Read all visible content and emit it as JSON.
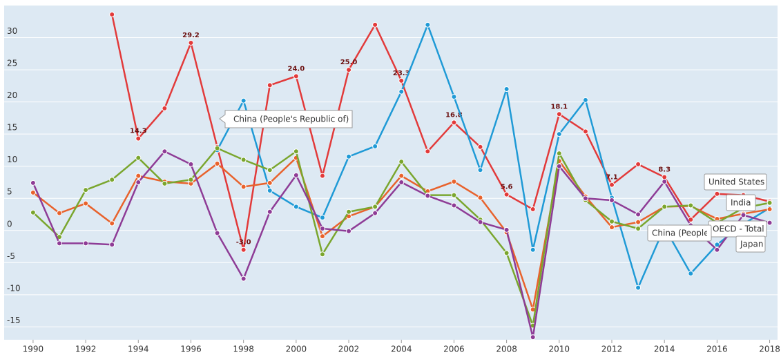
{
  "chart_data": {
    "type": "line",
    "x": [
      1990,
      1991,
      1992,
      1993,
      1994,
      1995,
      1996,
      1997,
      1998,
      1999,
      2000,
      2001,
      2002,
      2003,
      2004,
      2005,
      2006,
      2007,
      2008,
      2009,
      2010,
      2011,
      2012,
      2013,
      2014,
      2015,
      2016,
      2017,
      2018
    ],
    "xlim": [
      1988.9,
      2018.3
    ],
    "xticks": [
      1990,
      1992,
      1994,
      1996,
      1998,
      2000,
      2002,
      2004,
      2006,
      2008,
      2010,
      2012,
      2014,
      2016,
      2018
    ],
    "ylim": [
      -17,
      35
    ],
    "yticks": [
      -15,
      -10,
      -5,
      0,
      5,
      10,
      15,
      20,
      25,
      30
    ],
    "grid": true,
    "series": [
      {
        "name": "India",
        "color": "#e23a3a",
        "values": [
          null,
          null,
          null,
          33.6,
          14.3,
          19.0,
          29.2,
          13.0,
          -3,
          22.6,
          24,
          8.5,
          25,
          32.0,
          23.3,
          12.3,
          16.8,
          13.0,
          5.6,
          3.3,
          18.1,
          15.4,
          7.1,
          10.3,
          8.3,
          1.7,
          5.7,
          5.5,
          4.5
        ],
        "value_labels": [
          null,
          null,
          null,
          null,
          "14.3",
          null,
          "29.2",
          null,
          "-3.0",
          null,
          "24.0",
          null,
          "25.0",
          null,
          "23.3",
          null,
          "16.8",
          null,
          "5.6",
          null,
          "18.1",
          null,
          "7.1",
          null,
          "8.3",
          null,
          null,
          null,
          null
        ]
      },
      {
        "name": "China (People's Republic of)",
        "color": "#1f9ad6",
        "values": [
          null,
          null,
          null,
          null,
          null,
          null,
          null,
          12.5,
          20.2,
          6.2,
          3.7,
          2.0,
          11.5,
          13.1,
          21.6,
          32.0,
          20.8,
          9.4,
          22.0,
          -3.0,
          15.0,
          20.3,
          5.1,
          -8.9,
          0.5,
          -6.7,
          -2.2,
          1.0,
          3.5
        ]
      },
      {
        "name": "OECD - Total",
        "color": "#e8622c",
        "values": [
          5.9,
          2.7,
          4.2,
          1.1,
          8.5,
          7.6,
          7.3,
          10.4,
          6.8,
          7.4,
          11.3,
          -0.9,
          2.2,
          3.7,
          8.5,
          6.1,
          7.6,
          5.1,
          -0.3,
          -12.3,
          10.8,
          5.3,
          0.5,
          1.3,
          3.7,
          3.8,
          1.8,
          2.6,
          3.3
        ]
      },
      {
        "name": "United States",
        "color": "#7aa62e",
        "values": [
          2.8,
          -1.0,
          6.3,
          7.9,
          11.3,
          7.3,
          7.9,
          12.8,
          11.0,
          9.4,
          12.3,
          -3.7,
          2.9,
          3.7,
          10.7,
          5.5,
          5.5,
          1.7,
          -3.5,
          -14.8,
          12.0,
          4.7,
          1.4,
          0.3,
          3.7,
          3.9,
          1.2,
          3.5,
          4.3
        ]
      },
      {
        "name": "Japan",
        "color": "#8e3c96",
        "values": [
          7.4,
          -2.0,
          -2.0,
          -2.2,
          7.5,
          12.3,
          10.3,
          -0.4,
          -7.5,
          2.9,
          8.6,
          0.3,
          -0.1,
          2.7,
          7.5,
          5.4,
          3.9,
          1.3,
          0.1,
          -16.6,
          10.0,
          5.0,
          4.7,
          2.5,
          7.6,
          0.8,
          -3.0,
          2.4,
          1.2
        ]
      }
    ]
  }
}
